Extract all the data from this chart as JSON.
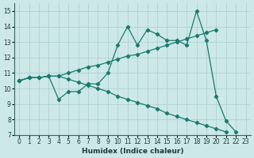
{
  "xlabel": "Humidex (Indice chaleur)",
  "bg_color": "#cce8e8",
  "grid_color": "#aacccc",
  "line_color": "#1a7a6e",
  "xlim": [
    -0.5,
    23.5
  ],
  "ylim": [
    7,
    15.5
  ],
  "yticks": [
    7,
    8,
    9,
    10,
    11,
    12,
    13,
    14,
    15
  ],
  "xticks": [
    0,
    1,
    2,
    3,
    4,
    5,
    6,
    7,
    8,
    9,
    10,
    11,
    12,
    13,
    14,
    15,
    16,
    17,
    18,
    19,
    20,
    21,
    22,
    23
  ],
  "line1_x": [
    0,
    1,
    2,
    3,
    4,
    5,
    6,
    7,
    8,
    9,
    10,
    11,
    12,
    13,
    14,
    15,
    16,
    17,
    18,
    19,
    20,
    21,
    22,
    23
  ],
  "line1_y": [
    10.5,
    10.7,
    10.7,
    10.8,
    9.3,
    9.8,
    9.8,
    10.3,
    10.3,
    11.0,
    12.8,
    14.0,
    12.8,
    13.8,
    13.5,
    13.1,
    13.1,
    12.8,
    15.0,
    13.1,
    9.5,
    7.9,
    7.2,
    null
  ],
  "line2_x": [
    0,
    1,
    2,
    3,
    4,
    5,
    6,
    7,
    8,
    9,
    10,
    11,
    12,
    13,
    14,
    15,
    16,
    17,
    18,
    19,
    20,
    21,
    22,
    23
  ],
  "line2_y": [
    10.5,
    10.7,
    10.7,
    10.8,
    10.8,
    11.0,
    11.2,
    11.4,
    11.5,
    11.7,
    11.9,
    12.1,
    12.2,
    12.4,
    12.6,
    12.8,
    13.0,
    13.2,
    13.4,
    13.6,
    13.8,
    null,
    null,
    null
  ],
  "line3_x": [
    0,
    1,
    2,
    3,
    4,
    5,
    6,
    7,
    8,
    9,
    10,
    11,
    12,
    13,
    14,
    15,
    16,
    17,
    18,
    19,
    20,
    21,
    22,
    23
  ],
  "line3_y": [
    10.5,
    10.7,
    10.7,
    10.8,
    10.8,
    10.6,
    10.4,
    10.2,
    10.0,
    9.8,
    9.5,
    9.3,
    9.1,
    8.9,
    8.7,
    8.4,
    8.2,
    8.0,
    7.8,
    7.6,
    7.4,
    7.2,
    null,
    null
  ]
}
